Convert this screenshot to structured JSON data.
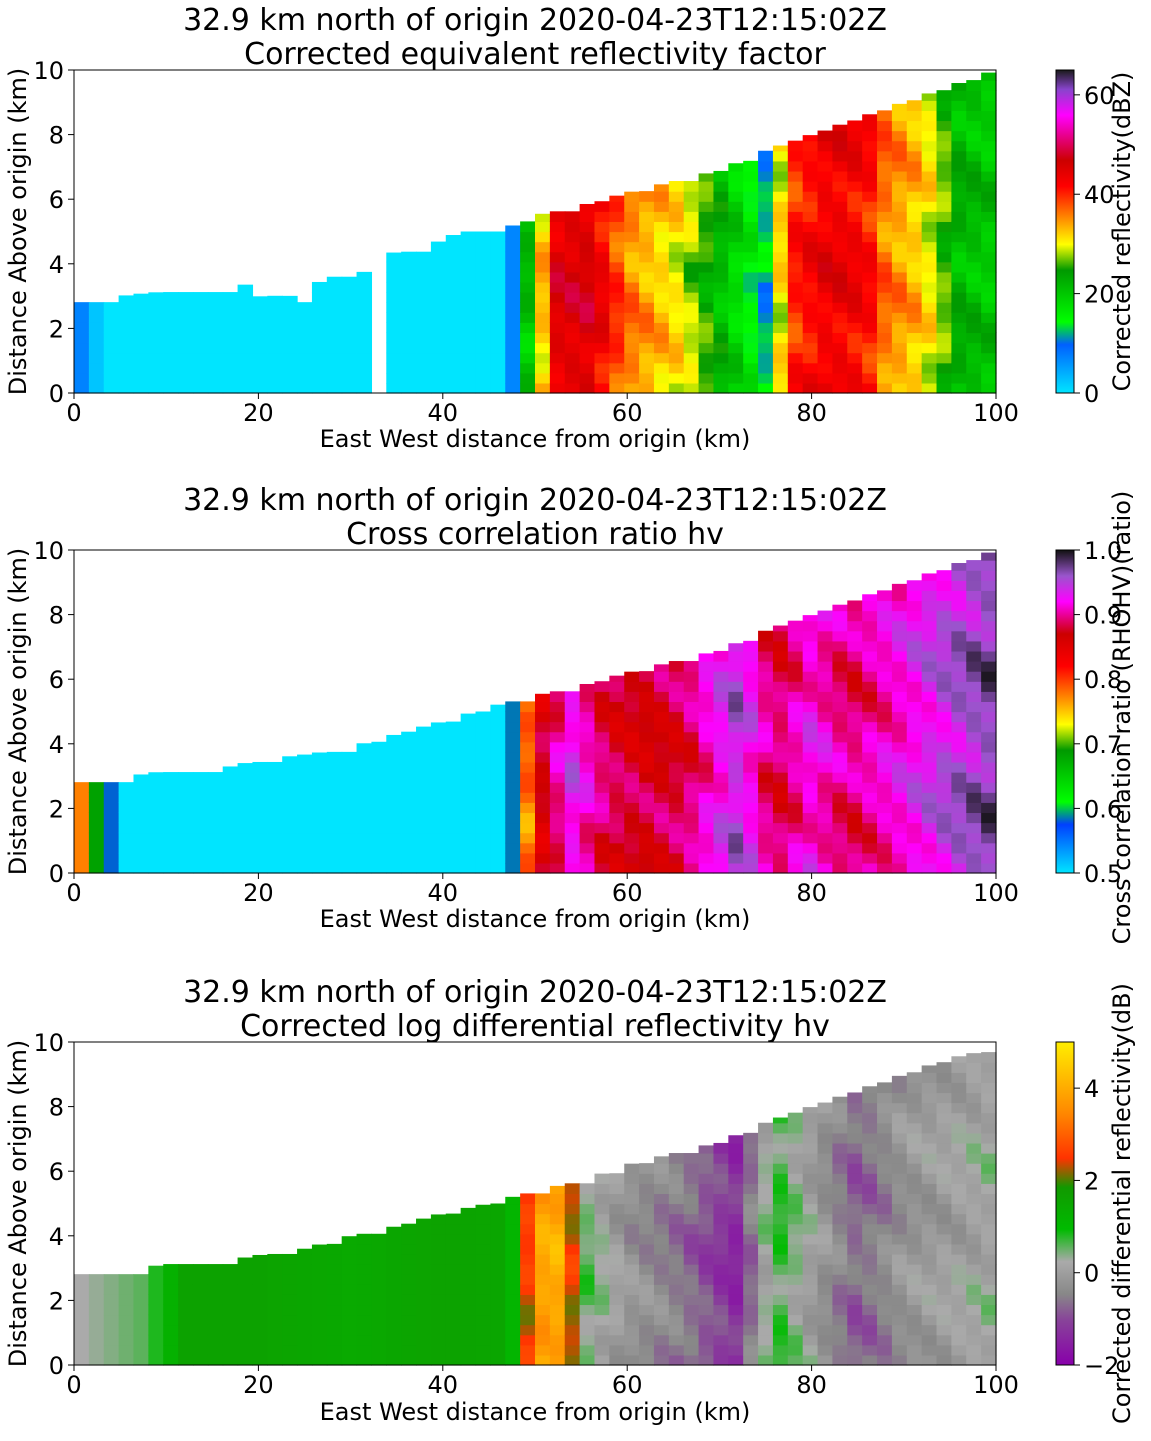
{
  "chart_data": [
    {
      "type": "heatmap",
      "title_line1": "32.9 km north of origin 2020-04-23T12:15:02Z",
      "title_line2": "Corrected equivalent reflectivity factor",
      "xlabel": "East West distance from origin (km)",
      "ylabel": "Distance Above origin (km)",
      "xlim": [
        0,
        100
      ],
      "ylim": [
        0,
        10
      ],
      "x_ticks": [
        0,
        20,
        40,
        60,
        80,
        100
      ],
      "y_ticks": [
        0,
        2,
        4,
        6,
        8,
        10
      ],
      "colorbar": {
        "label": "Corrected reflectivity(dBZ)",
        "range": [
          0,
          65
        ],
        "ticks": [
          0,
          20,
          40,
          60
        ],
        "stops": [
          [
            0,
            "#00e5ff"
          ],
          [
            0.15,
            "#0060ff"
          ],
          [
            0.22,
            "#00ff00"
          ],
          [
            0.38,
            "#009900"
          ],
          [
            0.46,
            "#ffff00"
          ],
          [
            0.54,
            "#ff8c00"
          ],
          [
            0.64,
            "#ff0000"
          ],
          [
            0.72,
            "#cc0000"
          ],
          [
            0.86,
            "#ff00ff"
          ],
          [
            0.94,
            "#8844cc"
          ],
          [
            1.0,
            "#1a1a1a"
          ]
        ]
      },
      "top_profile": [
        [
          0,
          2.9
        ],
        [
          2,
          2.9
        ],
        [
          8,
          3.1
        ],
        [
          18,
          3.3
        ],
        [
          19,
          3.4
        ],
        [
          21,
          2.7
        ],
        [
          22,
          3.1
        ],
        [
          25,
          2.9
        ],
        [
          27,
          3.6
        ],
        [
          30,
          3.6
        ],
        [
          35,
          4.4
        ],
        [
          38,
          4.5
        ],
        [
          42,
          5.0
        ],
        [
          48,
          5.2
        ],
        [
          50,
          5.5
        ],
        [
          55,
          5.8
        ],
        [
          60,
          6.2
        ],
        [
          70,
          6.9
        ],
        [
          75,
          7.5
        ],
        [
          80,
          8.0
        ],
        [
          85,
          8.5
        ],
        [
          90,
          9.0
        ],
        [
          95,
          9.5
        ],
        [
          100,
          10.0
        ]
      ],
      "gaps": [
        [
          31.5,
          34.5
        ]
      ],
      "column_values": [
        [
          0,
          10
        ],
        [
          2,
          3
        ],
        [
          4,
          0
        ],
        [
          10,
          0
        ],
        [
          30,
          0
        ],
        [
          47,
          0
        ],
        [
          48.5,
          18
        ],
        [
          50,
          24
        ],
        [
          52,
          45
        ],
        [
          56,
          46
        ],
        [
          60,
          36
        ],
        [
          66,
          30
        ],
        [
          70,
          22
        ],
        [
          75,
          12
        ],
        [
          76.5,
          30
        ],
        [
          78,
          40
        ],
        [
          82,
          44
        ],
        [
          86,
          42
        ],
        [
          88,
          36
        ],
        [
          92,
          32
        ],
        [
          96,
          22
        ],
        [
          100,
          20
        ]
      ]
    },
    {
      "type": "heatmap",
      "title_line1": "32.9 km north of origin 2020-04-23T12:15:02Z",
      "title_line2": "Cross correlation ratio hv",
      "xlabel": "East West distance from origin (km)",
      "ylabel": "Distance Above origin (km)",
      "xlim": [
        0,
        100
      ],
      "ylim": [
        0,
        10
      ],
      "x_ticks": [
        0,
        20,
        40,
        60,
        80,
        100
      ],
      "y_ticks": [
        0,
        2,
        4,
        6,
        8,
        10
      ],
      "colorbar": {
        "label": "Cross correlation ratio (RHOHV)(ratio)",
        "range": [
          0.5,
          1.0
        ],
        "ticks": [
          0.5,
          0.6,
          0.7,
          0.8,
          0.9,
          1.0
        ],
        "stops": [
          [
            0,
            "#00e5ff"
          ],
          [
            0.15,
            "#0040ff"
          ],
          [
            0.22,
            "#00ff00"
          ],
          [
            0.38,
            "#009900"
          ],
          [
            0.46,
            "#ffff00"
          ],
          [
            0.54,
            "#ff8c00"
          ],
          [
            0.64,
            "#ff0000"
          ],
          [
            0.74,
            "#cc0000"
          ],
          [
            0.84,
            "#ff00ff"
          ],
          [
            0.92,
            "#9955cc"
          ],
          [
            1.0,
            "#111111"
          ]
        ]
      },
      "top_profile": [
        [
          0,
          2.9
        ],
        [
          5,
          2.9
        ],
        [
          8,
          3.1
        ],
        [
          17,
          3.3
        ],
        [
          20,
          3.5
        ],
        [
          26,
          3.7
        ],
        [
          30,
          3.9
        ],
        [
          35,
          4.3
        ],
        [
          40,
          4.7
        ],
        [
          47,
          5.3
        ],
        [
          50,
          5.5
        ],
        [
          55,
          5.8
        ],
        [
          60,
          6.2
        ],
        [
          70,
          6.9
        ],
        [
          75,
          7.5
        ],
        [
          80,
          8.0
        ],
        [
          85,
          8.5
        ],
        [
          90,
          9.0
        ],
        [
          95,
          9.5
        ],
        [
          100,
          10.0
        ]
      ],
      "gaps": [],
      "column_values": [
        [
          0,
          0.82
        ],
        [
          3,
          0.65
        ],
        [
          4.5,
          0.55
        ],
        [
          5,
          0.5
        ],
        [
          47,
          0.5
        ],
        [
          48.5,
          0.72
        ],
        [
          50,
          0.85
        ],
        [
          54,
          0.93
        ],
        [
          58,
          0.88
        ],
        [
          62,
          0.87
        ],
        [
          66,
          0.88
        ],
        [
          72,
          0.95
        ],
        [
          76,
          0.88
        ],
        [
          80,
          0.92
        ],
        [
          84,
          0.89
        ],
        [
          90,
          0.92
        ],
        [
          95,
          0.95
        ],
        [
          100,
          0.97
        ]
      ]
    },
    {
      "type": "heatmap",
      "title_line1": "32.9 km north of origin 2020-04-23T12:15:02Z",
      "title_line2": "Corrected log differential reflectivity hv",
      "xlabel": "East West distance from origin (km)",
      "ylabel": "Distance Above origin (km)",
      "xlim": [
        0,
        100
      ],
      "ylim": [
        0,
        10
      ],
      "x_ticks": [
        0,
        20,
        40,
        60,
        80,
        100
      ],
      "y_ticks": [
        0,
        2,
        4,
        6,
        8,
        10
      ],
      "colorbar": {
        "label": "Corrected differential reflectivity(dB)",
        "range": [
          -2,
          5
        ],
        "ticks": [
          -2,
          0,
          2,
          4
        ],
        "stops": [
          [
            0,
            "#8800aa"
          ],
          [
            0.14,
            "#884499"
          ],
          [
            0.22,
            "#888888"
          ],
          [
            0.32,
            "#aaaaaa"
          ],
          [
            0.42,
            "#00bb00"
          ],
          [
            0.55,
            "#119900"
          ],
          [
            0.64,
            "#ff3300"
          ],
          [
            0.78,
            "#ff8800"
          ],
          [
            1.0,
            "#ffee00"
          ]
        ]
      },
      "top_profile": [
        [
          0,
          2.9
        ],
        [
          8,
          2.9
        ],
        [
          9,
          3.1
        ],
        [
          18,
          3.3
        ],
        [
          20,
          3.4
        ],
        [
          25,
          3.6
        ],
        [
          30,
          4.0
        ],
        [
          35,
          4.3
        ],
        [
          40,
          4.7
        ],
        [
          45,
          5.0
        ],
        [
          50,
          5.4
        ],
        [
          55,
          5.7
        ],
        [
          60,
          6.2
        ],
        [
          70,
          6.9
        ],
        [
          75,
          7.5
        ],
        [
          80,
          8.0
        ],
        [
          85,
          8.5
        ],
        [
          90,
          9.0
        ],
        [
          95,
          9.5
        ],
        [
          100,
          9.8
        ]
      ],
      "gaps": [],
      "column_values": [
        [
          0,
          0.2
        ],
        [
          8,
          0.6
        ],
        [
          12,
          1.6
        ],
        [
          20,
          1.6
        ],
        [
          30,
          1.4
        ],
        [
          40,
          1.6
        ],
        [
          46,
          1.5
        ],
        [
          48,
          1.0
        ],
        [
          50,
          3.5
        ],
        [
          52,
          4.4
        ],
        [
          54,
          2.4
        ],
        [
          55,
          0.6
        ],
        [
          60,
          -0.2
        ],
        [
          66,
          -0.6
        ],
        [
          72,
          -1.4
        ],
        [
          76,
          0.8
        ],
        [
          80,
          0.0
        ],
        [
          85,
          -0.8
        ],
        [
          90,
          -0.2
        ],
        [
          95,
          0.0
        ],
        [
          100,
          0.2
        ]
      ]
    }
  ]
}
